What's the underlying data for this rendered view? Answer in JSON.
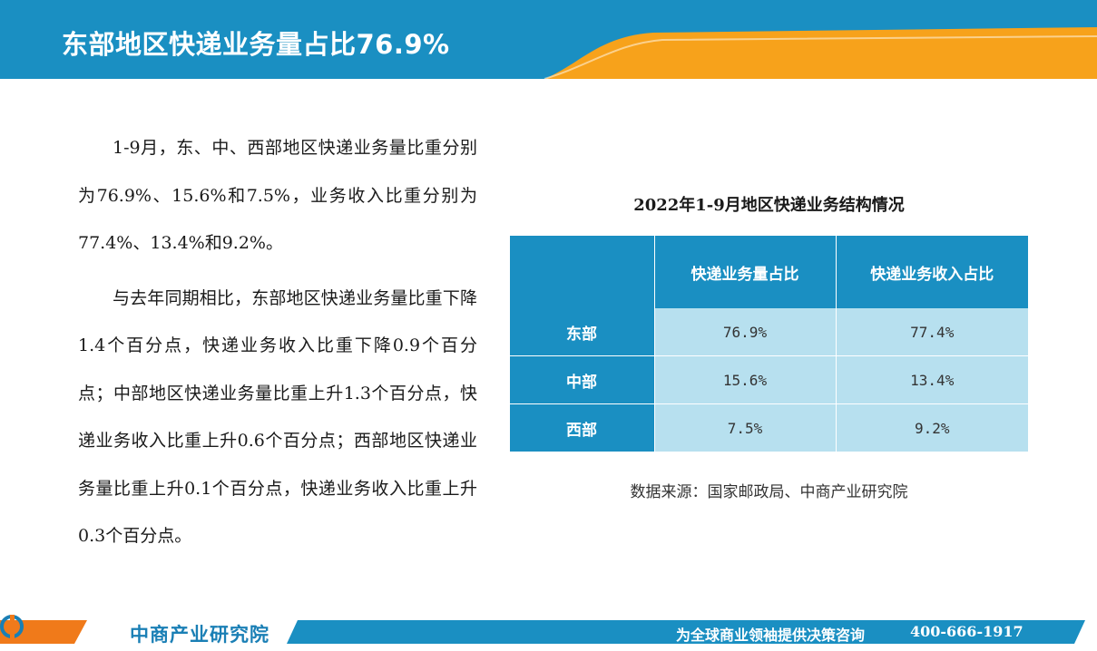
{
  "header": {
    "title": "东部地区快递业务量占比76.9%",
    "colors": {
      "primary": "#1a8fc2",
      "accent": "#f7a21b"
    }
  },
  "body": {
    "paragraphs": [
      "1-9月，东、中、西部地区快递业务量比重分别为76.9%、15.6%和7.5%，业务收入比重分别为77.4%、13.4%和9.2%。",
      "与去年同期相比，东部地区快递业务量比重下降1.4个百分点，快递业务收入比重下降0.9个百分点；中部地区快递业务量比重上升1.3个百分点，快递业务收入比重上升0.6个百分点；西部地区快递业务量比重上升0.1个百分点，快递业务收入比重上升0.3个百分点。"
    ]
  },
  "table": {
    "title": "2022年1-9月地区快递业务结构情况",
    "headers": [
      "",
      "快递业务量占比",
      "快递业务收入占比"
    ],
    "rows": [
      {
        "label": "东部",
        "volume": "76.9%",
        "revenue": "77.4%"
      },
      {
        "label": "中部",
        "volume": "15.6%",
        "revenue": "13.4%"
      },
      {
        "label": "西部",
        "volume": "7.5%",
        "revenue": "9.2%"
      }
    ],
    "colors": {
      "header_bg": "#1a8fc2",
      "cell_bg": "#b7e0ef"
    }
  },
  "source": "数据来源：国家邮政局、中商产业研究院",
  "footer": {
    "logo_text": "中商产业研究院",
    "tagline": "为全球商业领袖提供决策咨询",
    "phone": "400-666-1917",
    "logo_icon": "company-logo-icon"
  }
}
